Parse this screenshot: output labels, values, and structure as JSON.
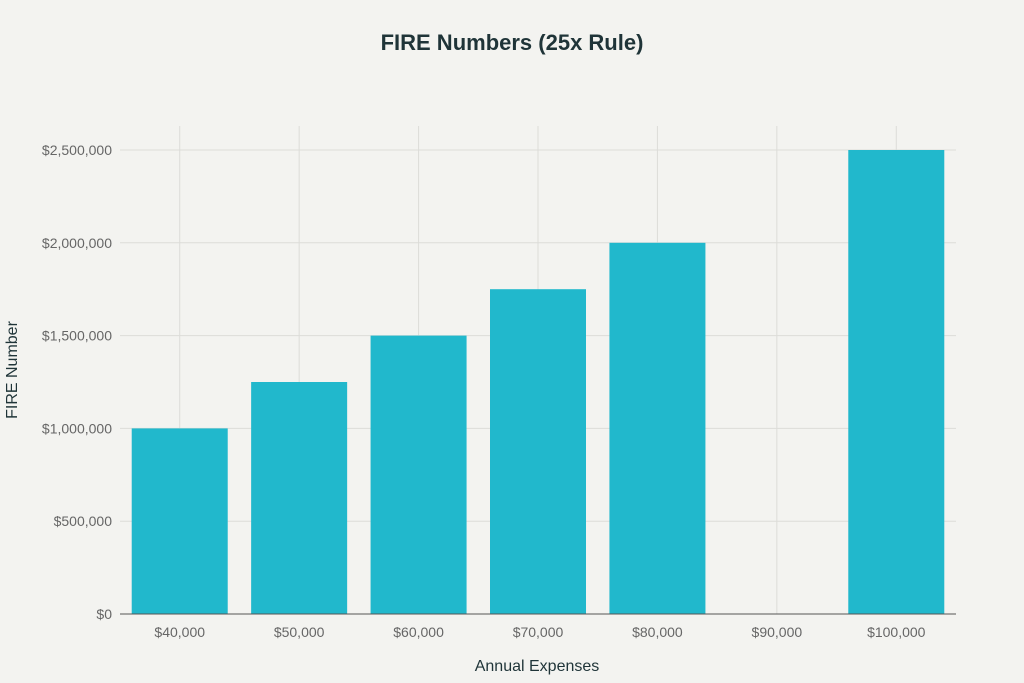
{
  "chart_data": {
    "type": "bar",
    "title": "FIRE Numbers (25x Rule)",
    "xlabel": "Annual Expenses",
    "ylabel": "FIRE Number",
    "categories": [
      "$40,000",
      "$50,000",
      "$60,000",
      "$70,000",
      "$80,000",
      "$90,000",
      "$100,000"
    ],
    "values": [
      1000000,
      1250000,
      1500000,
      1750000,
      2000000,
      0,
      2500000
    ],
    "ylim": [
      0,
      2500000
    ],
    "yticks": [
      0,
      500000,
      1000000,
      1500000,
      2000000,
      2500000
    ],
    "ytick_labels": [
      "$0",
      "$500,000",
      "$1,000,000",
      "$1,500,000",
      "$2,000,000",
      "$2,500,000"
    ],
    "grid": true,
    "legend": "none",
    "bar_color": "#21b8cc",
    "background_color": "#f3f3f0",
    "grid_color": "#dcdcd8"
  }
}
